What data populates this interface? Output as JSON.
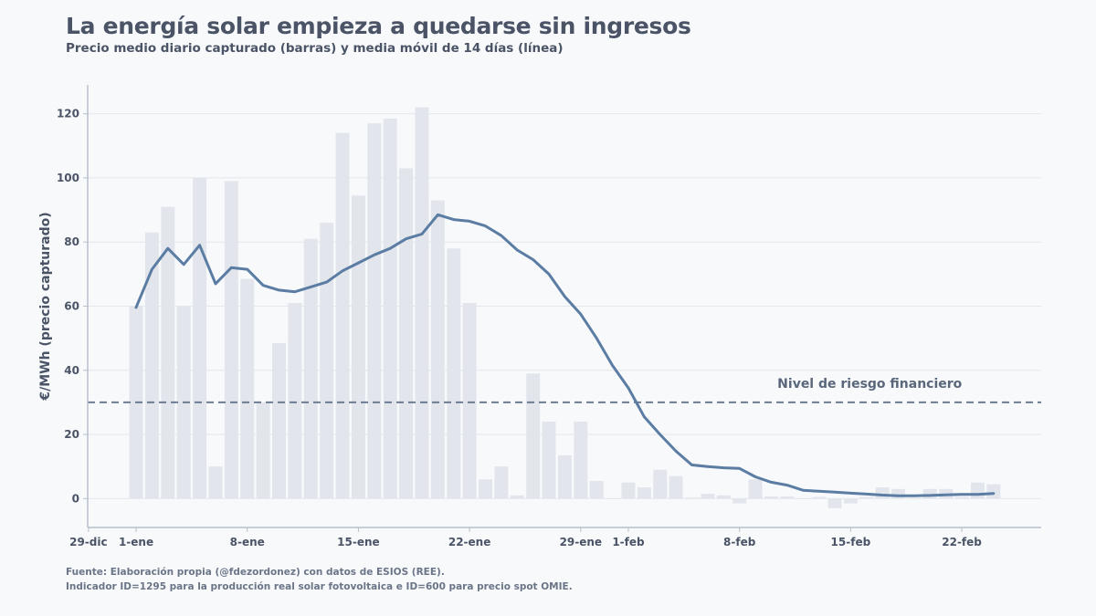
{
  "header": {
    "title": "La energía solar empieza a quedarse sin ingresos",
    "subtitle": "Precio medio diario capturado (barras) y media móvil de 14 días (línea)"
  },
  "footer": {
    "line1": "Fuente: Elaboración propia (@fdezordonez) con datos de ESIOS (REE).",
    "line2": "Indicador ID=1295 para la producción real solar fotovoltaica e ID=600 para precio spot OMIE."
  },
  "colors": {
    "background": "#f7f9fb",
    "bars": "#e2e6ec",
    "line": "#5b7ca3",
    "threshold": "#6e7c91",
    "grid": "#e3e8ee",
    "axis": "#b8c0cb",
    "text": "#4a5466"
  },
  "chart_data": {
    "type": "bar",
    "title": "La energía solar empieza a quedarse sin ingresos",
    "subtitle": "Precio medio diario capturado (barras) y media móvil de 14 días (línea)",
    "xlabel": "",
    "ylabel": "€/MWh (precio capturado)",
    "ylim": [
      -9,
      129
    ],
    "xlim_days": [
      -3.05,
      57
    ],
    "grid": true,
    "yticks": [
      0,
      20,
      40,
      60,
      80,
      100,
      120
    ],
    "xticks": [
      {
        "day": -3,
        "label": "29-dic"
      },
      {
        "day": 0,
        "label": "1-ene"
      },
      {
        "day": 7,
        "label": "8-ene"
      },
      {
        "day": 14,
        "label": "15-ene"
      },
      {
        "day": 21,
        "label": "22-ene"
      },
      {
        "day": 28,
        "label": "29-ene"
      },
      {
        "day": 31,
        "label": "1-feb"
      },
      {
        "day": 38,
        "label": "8-feb"
      },
      {
        "day": 45,
        "label": "15-feb"
      },
      {
        "day": 52,
        "label": "22-feb"
      }
    ],
    "start_date": "1-ene",
    "series": [
      {
        "name": "Precio medio diario capturado",
        "kind": "bar",
        "values": [
          60,
          83,
          91,
          60,
          100,
          10,
          99,
          68.5,
          30,
          48.5,
          61,
          81,
          86,
          114,
          94.5,
          117,
          118.5,
          103,
          122,
          93,
          78,
          61,
          6,
          10,
          1,
          39,
          24,
          13.5,
          24,
          5.5,
          0,
          5,
          3.5,
          9,
          7,
          0.3,
          1.5,
          1,
          -1.5,
          6,
          0.7,
          0.7,
          -0.2,
          0.5,
          -3,
          -1.5,
          0.5,
          3.5,
          3,
          0.3,
          3,
          3,
          0.5,
          5,
          4.5
        ]
      },
      {
        "name": "Media móvil de 14 días",
        "kind": "line",
        "values": [
          59.6,
          71.5,
          78,
          73,
          79,
          67,
          72,
          71.5,
          66.5,
          65,
          64.5,
          66,
          67.5,
          71,
          73.5,
          76,
          78,
          81,
          82.5,
          88.5,
          87,
          86.5,
          85,
          82,
          77.5,
          74.5,
          70,
          63,
          57.5,
          50,
          41.5,
          34.5,
          25.5,
          20,
          14.8,
          10.5,
          10,
          9.6,
          9.4,
          6.8,
          5.1,
          4.2,
          2.6,
          2.3,
          2,
          1.7,
          1.4,
          1.1,
          0.9,
          0.9,
          1,
          1.2,
          1.3,
          1.3,
          1.6
        ]
      }
    ],
    "threshold": {
      "value": 30,
      "label": "Nivel de riesgo financiero",
      "style": "dashed"
    },
    "legend": "none"
  }
}
